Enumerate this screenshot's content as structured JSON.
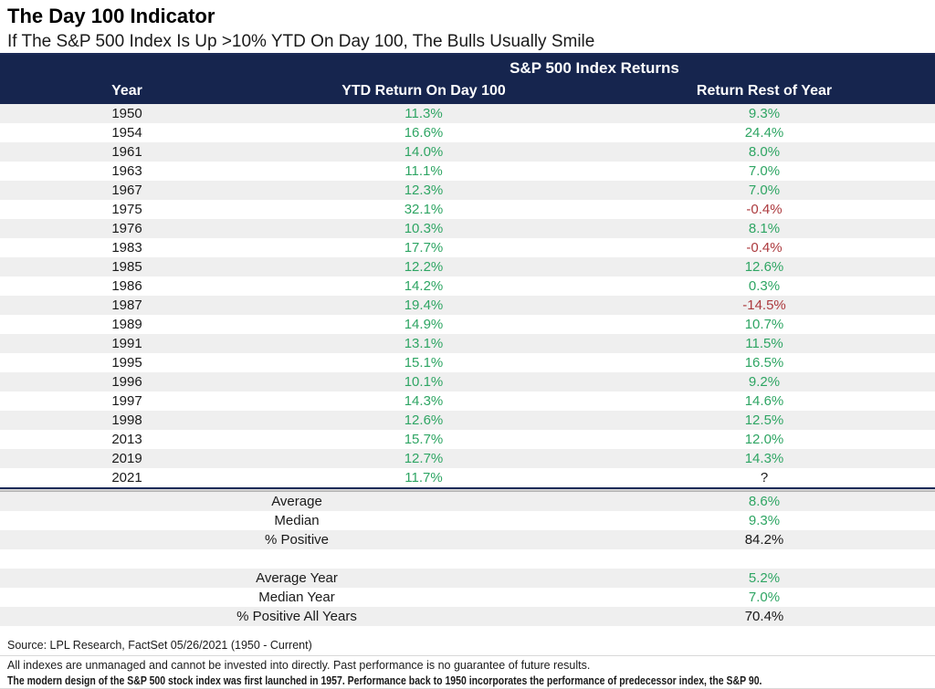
{
  "page": {
    "title": "The Day 100 Indicator",
    "subtitle": "If The S&P 500 Index Is Up >10% YTD On Day 100, The Bulls Usually Smile"
  },
  "colors": {
    "header_bg": "#16254E",
    "positive_green": "#2EA563",
    "negative_red": "#AC3A3E",
    "stripe_gray": "#EFEFEF"
  },
  "chart_data": {
    "type": "table",
    "group_header": "S&P 500 Index Returns",
    "columns": [
      "Year",
      "YTD Return On Day 100",
      "Return Rest of Year"
    ],
    "rows": [
      {
        "year": "1950",
        "ytd": "11.3%",
        "ytd_sign": "positive",
        "rest": "9.3%",
        "rest_sign": "positive"
      },
      {
        "year": "1954",
        "ytd": "16.6%",
        "ytd_sign": "positive",
        "rest": "24.4%",
        "rest_sign": "positive"
      },
      {
        "year": "1961",
        "ytd": "14.0%",
        "ytd_sign": "positive",
        "rest": "8.0%",
        "rest_sign": "positive"
      },
      {
        "year": "1963",
        "ytd": "11.1%",
        "ytd_sign": "positive",
        "rest": "7.0%",
        "rest_sign": "positive"
      },
      {
        "year": "1967",
        "ytd": "12.3%",
        "ytd_sign": "positive",
        "rest": "7.0%",
        "rest_sign": "positive"
      },
      {
        "year": "1975",
        "ytd": "32.1%",
        "ytd_sign": "positive",
        "rest": "-0.4%",
        "rest_sign": "negative"
      },
      {
        "year": "1976",
        "ytd": "10.3%",
        "ytd_sign": "positive",
        "rest": "8.1%",
        "rest_sign": "positive"
      },
      {
        "year": "1983",
        "ytd": "17.7%",
        "ytd_sign": "positive",
        "rest": "-0.4%",
        "rest_sign": "negative"
      },
      {
        "year": "1985",
        "ytd": "12.2%",
        "ytd_sign": "positive",
        "rest": "12.6%",
        "rest_sign": "positive"
      },
      {
        "year": "1986",
        "ytd": "14.2%",
        "ytd_sign": "positive",
        "rest": "0.3%",
        "rest_sign": "positive"
      },
      {
        "year": "1987",
        "ytd": "19.4%",
        "ytd_sign": "positive",
        "rest": "-14.5%",
        "rest_sign": "negative"
      },
      {
        "year": "1989",
        "ytd": "14.9%",
        "ytd_sign": "positive",
        "rest": "10.7%",
        "rest_sign": "positive"
      },
      {
        "year": "1991",
        "ytd": "13.1%",
        "ytd_sign": "positive",
        "rest": "11.5%",
        "rest_sign": "positive"
      },
      {
        "year": "1995",
        "ytd": "15.1%",
        "ytd_sign": "positive",
        "rest": "16.5%",
        "rest_sign": "positive"
      },
      {
        "year": "1996",
        "ytd": "10.1%",
        "ytd_sign": "positive",
        "rest": "9.2%",
        "rest_sign": "positive"
      },
      {
        "year": "1997",
        "ytd": "14.3%",
        "ytd_sign": "positive",
        "rest": "14.6%",
        "rest_sign": "positive"
      },
      {
        "year": "1998",
        "ytd": "12.6%",
        "ytd_sign": "positive",
        "rest": "12.5%",
        "rest_sign": "positive"
      },
      {
        "year": "2013",
        "ytd": "15.7%",
        "ytd_sign": "positive",
        "rest": "12.0%",
        "rest_sign": "positive"
      },
      {
        "year": "2019",
        "ytd": "12.7%",
        "ytd_sign": "positive",
        "rest": "14.3%",
        "rest_sign": "positive"
      },
      {
        "year": "2021",
        "ytd": "11.7%",
        "ytd_sign": "positive",
        "rest": "?",
        "rest_sign": "neutral"
      }
    ],
    "summary_day100": [
      {
        "label": "Average",
        "value": "8.6%",
        "sign": "positive"
      },
      {
        "label": "Median",
        "value": "9.3%",
        "sign": "positive"
      },
      {
        "label": "% Positive",
        "value": "84.2%",
        "sign": "neutral"
      }
    ],
    "summary_all_years": [
      {
        "label": "Average Year",
        "value": "5.2%",
        "sign": "positive"
      },
      {
        "label": "Median Year",
        "value": "7.0%",
        "sign": "positive"
      },
      {
        "label": "% Positive All Years",
        "value": "70.4%",
        "sign": "neutral"
      }
    ]
  },
  "footer": {
    "source": "Source: LPL Research, FactSet 05/26/2021 (1950 - Current)",
    "disclaimer": "All indexes are unmanaged and cannot be invested into directly. Past performance is no guarantee of future results.",
    "note": "The modern design of the S&P 500 stock index was first launched in 1957. Performance back to 1950 incorporates the performance of predecessor index, the S&P 90."
  }
}
